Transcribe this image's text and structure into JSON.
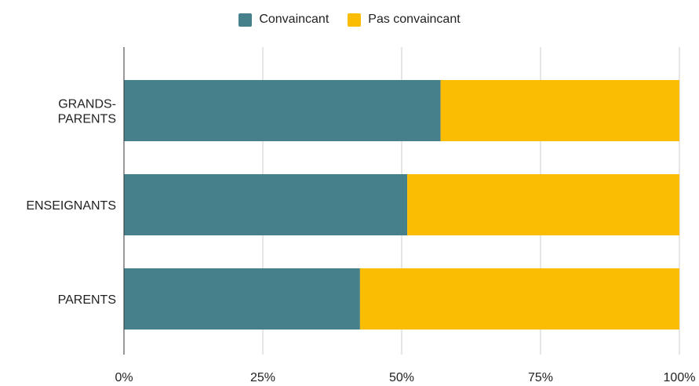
{
  "chart_data": {
    "type": "bar",
    "orientation": "horizontal",
    "stacked": "percent",
    "categories": [
      [
        "GRANDS-",
        "PARENTS"
      ],
      [
        "ENSEIGNANTS"
      ],
      [
        "PARENTS"
      ]
    ],
    "series": [
      {
        "name": "Convaincant",
        "color": "#46808b",
        "values": [
          57,
          51,
          42.5
        ]
      },
      {
        "name": "Pas convaincant",
        "color": "#fbbc04",
        "values": [
          43,
          49,
          57.5
        ]
      }
    ],
    "x_ticks": [
      "0%",
      "25%",
      "50%",
      "75%",
      "100%"
    ],
    "xlim": [
      0,
      100
    ],
    "grid": true,
    "legend_position": "top"
  }
}
